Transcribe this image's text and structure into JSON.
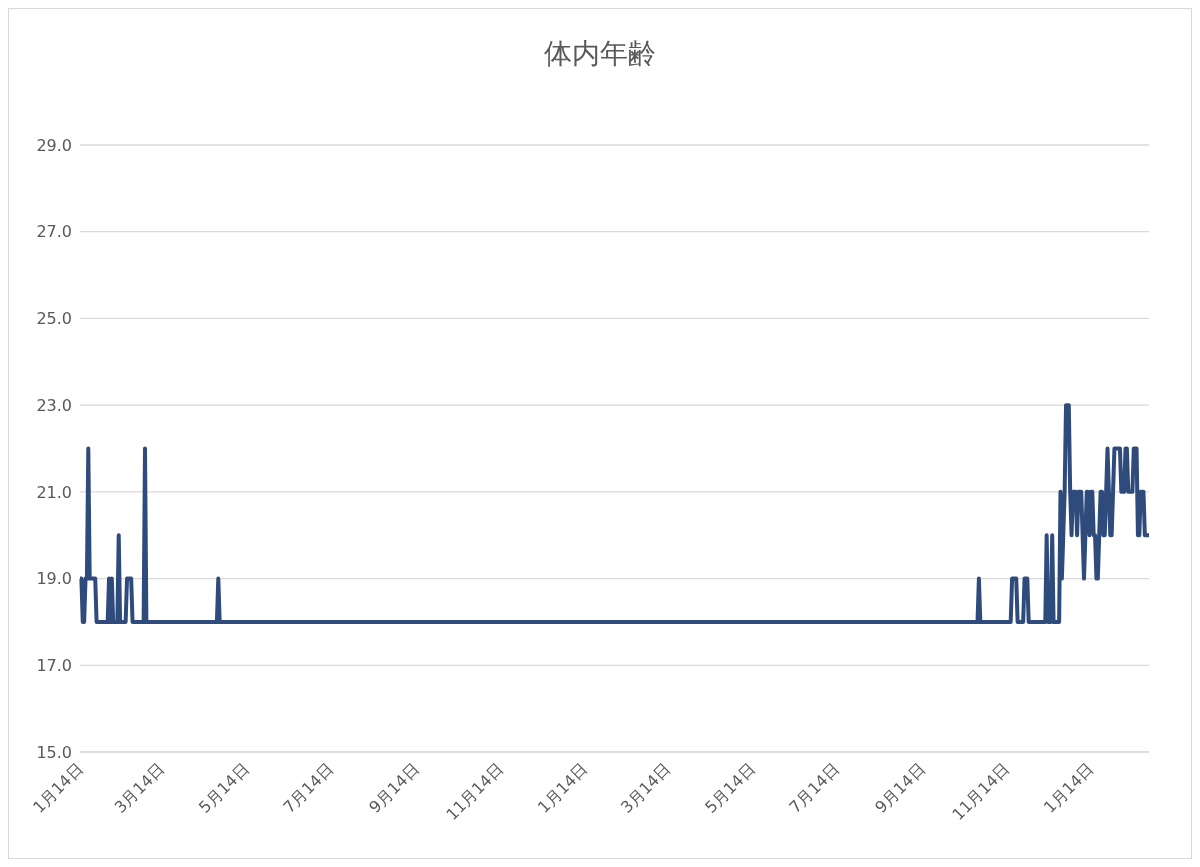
{
  "chart_data": {
    "type": "line",
    "title": "体内年齢",
    "categories": [
      "1月14日",
      null,
      null,
      null,
      null,
      null,
      null,
      null,
      null,
      null,
      null,
      null,
      null,
      null,
      null,
      null,
      null,
      null,
      null,
      null,
      null,
      null,
      null,
      null,
      null,
      null,
      null,
      null,
      null,
      null,
      null,
      null,
      null,
      null,
      null,
      null,
      null,
      null,
      null,
      null,
      null,
      null,
      null,
      null,
      null,
      null,
      null,
      null,
      null,
      null,
      null,
      null,
      null,
      null,
      null,
      null,
      null,
      null,
      null,
      "3月14日",
      null,
      null,
      null,
      null,
      null,
      null,
      null,
      null,
      null,
      null,
      null,
      null,
      null,
      null,
      null,
      null,
      null,
      null,
      null,
      null,
      null,
      null,
      null,
      null,
      null,
      null,
      null,
      null,
      null,
      null,
      null,
      null,
      null,
      null,
      null,
      null,
      null,
      null,
      null,
      null,
      null,
      null,
      null,
      null,
      null,
      null,
      null,
      null,
      null,
      null,
      null,
      null,
      null,
      null,
      null,
      null,
      null,
      null,
      null,
      null,
      "5月14日",
      null,
      null,
      null,
      null,
      null,
      null,
      null,
      null,
      null,
      null,
      null,
      null,
      null,
      null,
      null,
      null,
      null,
      null,
      null,
      null,
      null,
      null,
      null,
      null,
      null,
      null,
      null,
      null,
      null,
      null,
      null,
      null,
      null,
      null,
      null,
      null,
      null,
      null,
      null,
      null,
      null,
      null,
      null,
      null,
      null,
      null,
      null,
      null,
      null,
      null,
      null,
      null,
      null,
      null,
      null,
      null,
      null,
      null,
      null,
      null,
      "7月14日",
      null,
      null,
      null,
      null,
      null,
      null,
      null,
      null,
      null,
      null,
      null,
      null,
      null,
      null,
      null,
      null,
      null,
      null,
      null,
      null,
      null,
      null,
      null,
      null,
      null,
      null,
      null,
      null,
      null,
      null,
      null,
      null,
      null,
      null,
      null,
      null,
      null,
      null,
      null,
      null,
      null,
      null,
      null,
      null,
      null,
      null,
      null,
      null,
      null,
      null,
      null,
      null,
      null,
      null,
      null,
      null,
      null,
      null,
      null,
      null,
      null,
      "9月14日",
      null,
      null,
      null,
      null,
      null,
      null,
      null,
      null,
      null,
      null,
      null,
      null,
      null,
      null,
      null,
      null,
      null,
      null,
      null,
      null,
      null,
      null,
      null,
      null,
      null,
      null,
      null,
      null,
      null,
      null,
      null,
      null,
      null,
      null,
      null,
      null,
      null,
      null,
      null,
      null,
      null,
      null,
      null,
      null,
      null,
      null,
      null,
      null,
      null,
      null,
      null,
      null,
      null,
      null,
      null,
      null,
      null,
      null,
      null,
      null,
      "11月14日",
      null,
      null,
      null,
      null,
      null,
      null,
      null,
      null,
      null,
      null,
      null,
      null,
      null,
      null,
      null,
      null,
      null,
      null,
      null,
      null,
      null,
      null,
      null,
      null,
      null,
      null,
      null,
      null,
      null,
      null,
      null,
      null,
      null,
      null,
      null,
      null,
      null,
      null,
      null,
      null,
      null,
      null,
      null,
      null,
      null,
      null,
      null,
      null,
      null,
      null,
      null,
      null,
      null,
      null,
      null,
      null,
      null,
      null,
      null,
      null,
      "1月14日",
      null,
      null,
      null,
      null,
      null,
      null,
      null,
      null,
      null,
      null,
      null,
      null,
      null,
      null,
      null,
      null,
      null,
      null,
      null,
      null,
      null,
      null,
      null,
      null,
      null,
      null,
      null,
      null,
      null,
      null,
      null,
      null,
      null,
      null,
      null,
      null,
      null,
      null,
      null,
      null,
      null,
      null,
      null,
      null,
      null,
      null,
      null,
      null,
      null,
      null,
      null,
      null,
      null,
      null,
      null,
      null,
      null,
      null,
      null,
      "3月14日",
      null,
      null,
      null,
      null,
      null,
      null,
      null,
      null,
      null,
      null,
      null,
      null,
      null,
      null,
      null,
      null,
      null,
      null,
      null,
      null,
      null,
      null,
      null,
      null,
      null,
      null,
      null,
      null,
      null,
      null,
      null,
      null,
      null,
      null,
      null,
      null,
      null,
      null,
      null,
      null,
      null,
      null,
      null,
      null,
      null,
      null,
      null,
      null,
      null,
      null,
      null,
      null,
      null,
      null,
      null,
      null,
      null,
      null,
      null,
      null,
      "5月14日",
      null,
      null,
      null,
      null,
      null,
      null,
      null,
      null,
      null,
      null,
      null,
      null,
      null,
      null,
      null,
      null,
      null,
      null,
      null,
      null,
      null,
      null,
      null,
      null,
      null,
      null,
      null,
      null,
      null,
      null,
      null,
      null,
      null,
      null,
      null,
      null,
      null,
      null,
      null,
      null,
      null,
      null,
      null,
      null,
      null,
      null,
      null,
      null,
      null,
      null,
      null,
      null,
      null,
      null,
      null,
      null,
      null,
      null,
      null,
      null,
      "7月14日",
      null,
      null,
      null,
      null,
      null,
      null,
      null,
      null,
      null,
      null,
      null,
      null,
      null,
      null,
      null,
      null,
      null,
      null,
      null,
      null,
      null,
      null,
      null,
      null,
      null,
      null,
      null,
      null,
      null,
      null,
      null,
      null,
      null,
      null,
      null,
      null,
      null,
      null,
      null,
      null,
      null,
      null,
      null,
      null,
      null,
      null,
      null,
      null,
      null,
      null,
      null,
      null,
      null,
      null,
      null,
      null,
      null,
      null,
      null,
      null,
      null,
      "9月14日",
      null,
      null,
      null,
      null,
      null,
      null,
      null,
      null,
      null,
      null,
      null,
      null,
      null,
      null,
      null,
      null,
      null,
      null,
      null,
      null,
      null,
      null,
      null,
      null,
      null,
      null,
      null,
      null,
      null,
      null,
      null,
      null,
      null,
      null,
      null,
      null,
      null,
      null,
      null,
      null,
      null,
      null,
      null,
      null,
      null,
      null,
      null,
      null,
      null,
      null,
      null,
      null,
      null,
      null,
      null,
      null,
      null,
      null,
      null,
      null,
      "11月14日",
      null,
      null,
      null,
      null,
      null,
      null,
      null,
      null,
      null,
      null,
      null,
      null,
      null,
      null,
      null,
      null,
      null,
      null,
      null,
      null,
      null,
      null,
      null,
      null,
      null,
      null,
      null,
      null,
      null,
      null,
      null,
      null,
      null,
      null,
      null,
      null,
      null,
      null,
      null,
      null,
      null,
      null,
      null,
      null,
      null,
      null,
      null,
      null,
      null,
      null,
      null,
      null,
      null,
      null,
      null,
      null,
      null,
      null,
      null,
      null,
      "1月14日",
      null,
      null,
      null,
      null,
      null,
      null,
      null,
      null,
      null,
      null,
      null,
      null,
      null,
      null,
      null,
      null,
      null,
      null,
      null,
      null,
      null,
      null,
      null,
      null,
      null,
      null,
      null,
      null,
      null,
      null,
      null,
      null,
      null,
      null,
      null,
      null,
      null,
      null,
      null,
      null,
      null,
      null
    ],
    "series": [
      {
        "color": "#2f4b7c",
        "values": [
          19,
          19,
          18,
          18,
          19,
          19,
          22,
          19,
          19,
          19,
          19,
          19,
          18,
          18,
          18,
          18,
          18,
          18,
          18,
          18,
          18,
          19,
          18,
          19,
          18,
          18,
          18,
          18,
          20,
          18,
          18,
          18,
          18,
          18,
          19,
          19,
          19,
          19,
          18,
          18,
          18,
          18,
          18,
          18,
          18,
          18,
          18,
          22,
          18,
          18,
          18,
          18,
          18,
          18,
          18,
          18,
          18,
          18,
          18,
          18,
          18,
          18,
          18,
          18,
          18,
          18,
          18,
          18,
          18,
          18,
          18,
          18,
          18,
          18,
          18,
          18,
          18,
          18,
          18,
          18,
          18,
          18,
          18,
          18,
          18,
          18,
          18,
          18,
          18,
          18,
          18,
          18,
          18,
          18,
          18,
          18,
          18,
          18,
          18,
          18,
          19,
          18,
          18,
          18,
          18,
          18,
          18,
          18,
          18,
          18,
          18,
          18,
          18,
          18,
          18,
          18,
          18,
          18,
          18,
          18,
          18,
          18,
          18,
          18,
          18,
          18,
          18,
          18,
          18,
          18,
          18,
          18,
          18,
          18,
          18,
          18,
          18,
          18,
          18,
          18,
          18,
          18,
          18,
          18,
          18,
          18,
          18,
          18,
          18,
          18,
          18,
          18,
          18,
          18,
          18,
          18,
          18,
          18,
          18,
          18,
          18,
          18,
          18,
          18,
          18,
          18,
          18,
          18,
          18,
          18,
          18,
          18,
          18,
          18,
          18,
          18,
          18,
          18,
          18,
          18,
          18,
          18,
          18,
          18,
          18,
          18,
          18,
          18,
          18,
          18,
          18,
          18,
          18,
          18,
          18,
          18,
          18,
          18,
          18,
          18,
          18,
          18,
          18,
          18,
          18,
          18,
          18,
          18,
          18,
          18,
          18,
          18,
          18,
          18,
          18,
          18,
          18,
          18,
          18,
          18,
          18,
          18,
          18,
          18,
          18,
          18,
          18,
          18,
          18,
          18,
          18,
          18,
          18,
          18,
          18,
          18,
          18,
          18,
          18,
          18,
          18,
          18,
          18,
          18,
          18,
          18,
          18,
          18,
          18,
          18,
          18,
          18,
          18,
          18,
          18,
          18,
          18,
          18,
          18,
          18,
          18,
          18,
          18,
          18,
          18,
          18,
          18,
          18,
          18,
          18,
          18,
          18,
          18,
          18,
          18,
          18,
          18,
          18,
          18,
          18,
          18,
          18,
          18,
          18,
          18,
          18,
          18,
          18,
          18,
          18,
          18,
          18,
          18,
          18,
          18,
          18,
          18,
          18,
          18,
          18,
          18,
          18,
          18,
          18,
          18,
          18,
          18,
          18,
          18,
          18,
          18,
          18,
          18,
          18,
          18,
          18,
          18,
          18,
          18,
          18,
          18,
          18,
          18,
          18,
          18,
          18,
          18,
          18,
          18,
          18,
          18,
          18,
          18,
          18,
          18,
          18,
          18,
          18,
          18,
          18,
          18,
          18,
          18,
          18,
          18,
          18,
          18,
          18,
          18,
          18,
          18,
          18,
          18,
          18,
          18,
          18,
          18,
          18,
          18,
          18,
          18,
          18,
          18,
          18,
          18,
          18,
          18,
          18,
          18,
          18,
          18,
          18,
          18,
          18,
          18,
          18,
          18,
          18,
          18,
          18,
          18,
          18,
          18,
          18,
          18,
          18,
          18,
          18,
          18,
          18,
          18,
          18,
          18,
          18,
          18,
          18,
          18,
          18,
          18,
          18,
          18,
          18,
          18,
          18,
          18,
          18,
          18,
          18,
          18,
          18,
          18,
          18,
          18,
          18,
          18,
          18,
          18,
          18,
          18,
          18,
          18,
          18,
          18,
          18,
          18,
          18,
          18,
          18,
          18,
          18,
          18,
          18,
          18,
          18,
          18,
          18,
          18,
          18,
          18,
          18,
          18,
          18,
          18,
          18,
          18,
          18,
          18,
          18,
          18,
          18,
          18,
          18,
          18,
          18,
          18,
          18,
          18,
          18,
          18,
          18,
          18,
          18,
          18,
          18,
          18,
          18,
          18,
          18,
          18,
          18,
          18,
          18,
          18,
          18,
          18,
          18,
          18,
          18,
          18,
          18,
          18,
          18,
          18,
          18,
          18,
          18,
          18,
          18,
          18,
          18,
          18,
          18,
          18,
          18,
          18,
          18,
          18,
          18,
          18,
          18,
          18,
          18,
          18,
          18,
          18,
          18,
          18,
          18,
          18,
          18,
          18,
          18,
          18,
          18,
          18,
          18,
          18,
          18,
          18,
          18,
          18,
          18,
          18,
          18,
          18,
          18,
          18,
          18,
          18,
          18,
          18,
          18,
          18,
          18,
          18,
          18,
          18,
          18,
          18,
          18,
          18,
          18,
          18,
          18,
          18,
          18,
          18,
          18,
          18,
          18,
          18,
          18,
          18,
          18,
          18,
          18,
          18,
          18,
          18,
          18,
          18,
          18,
          18,
          18,
          18,
          18,
          18,
          18,
          18,
          18,
          18,
          18,
          18,
          18,
          18,
          18,
          18,
          18,
          18,
          18,
          18,
          18,
          18,
          18,
          18,
          18,
          18,
          18,
          18,
          18,
          18,
          18,
          18,
          18,
          18,
          18,
          18,
          18,
          18,
          18,
          18,
          18,
          18,
          18,
          18,
          18,
          18,
          18,
          18,
          18,
          18,
          18,
          18,
          18,
          18,
          18,
          18,
          18,
          18,
          18,
          18,
          18,
          18,
          18,
          18,
          18,
          18,
          18,
          18,
          18,
          18,
          18,
          18,
          18,
          18,
          18,
          18,
          18,
          18,
          18,
          18,
          18,
          18,
          18,
          18,
          18,
          18,
          18,
          18,
          18,
          19,
          18,
          18,
          18,
          18,
          18,
          18,
          18,
          18,
          18,
          18,
          18,
          18,
          18,
          18,
          18,
          18,
          18,
          18,
          18,
          18,
          18,
          18,
          18,
          19,
          19,
          19,
          19,
          18,
          18,
          18,
          18,
          18,
          19,
          19,
          19,
          18,
          18,
          18,
          18,
          18,
          18,
          18,
          18,
          18,
          18,
          18,
          18,
          18,
          20,
          18,
          18,
          18,
          20,
          18,
          18,
          18,
          18,
          18,
          21,
          19,
          20,
          21,
          23,
          23,
          23,
          21,
          20,
          21,
          21,
          21,
          20,
          21,
          21,
          21,
          20,
          19,
          20,
          21,
          21,
          20,
          21,
          21,
          20,
          20,
          19,
          19,
          20,
          21,
          21,
          20,
          20,
          21,
          22,
          21,
          20,
          20,
          21,
          22,
          22,
          22,
          22,
          22,
          21,
          21,
          21,
          22,
          22,
          21,
          21,
          21,
          21,
          22,
          22,
          22,
          20,
          20,
          21,
          21,
          21,
          20,
          20,
          20,
          20
        ]
      }
    ],
    "ylim": [
      15,
      29
    ],
    "yticks": [
      {
        "value": 15,
        "label": "15.0"
      },
      {
        "value": 17,
        "label": "17.0"
      },
      {
        "value": 19,
        "label": "19.0"
      },
      {
        "value": 21,
        "label": "21.0"
      },
      {
        "value": 23,
        "label": "23.0"
      },
      {
        "value": 25,
        "label": "25.0"
      },
      {
        "value": 27,
        "label": "27.0"
      },
      {
        "value": 29,
        "label": "29.0"
      }
    ],
    "grid": "y"
  }
}
